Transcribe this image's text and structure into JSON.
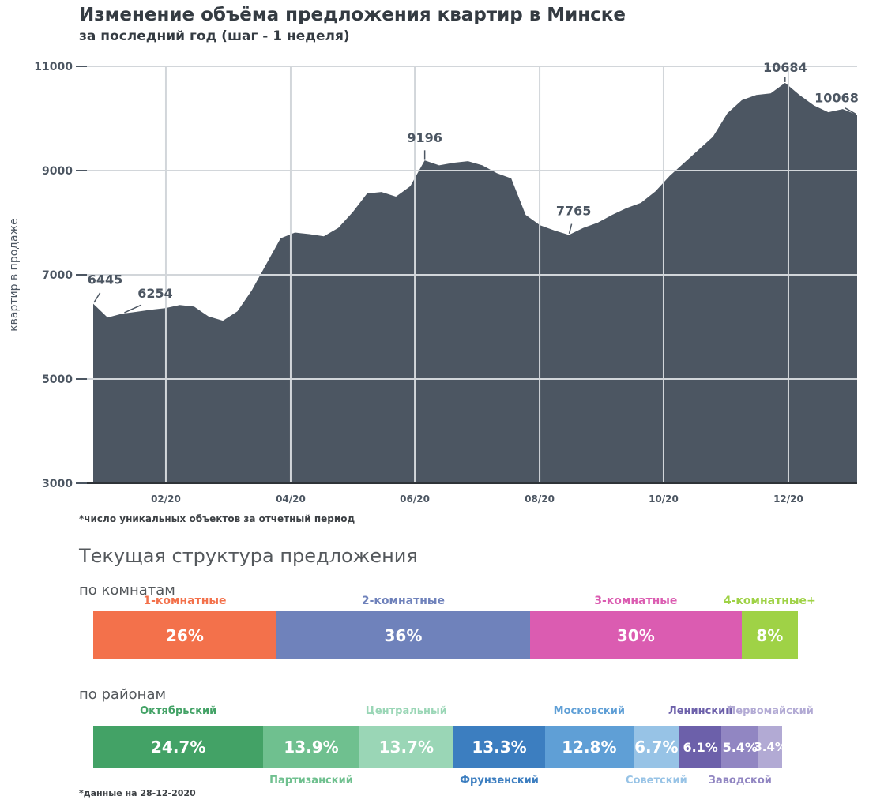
{
  "sections": {
    "structure_title": "Текущая структура предложения",
    "chart_footnote": "*число уникальных объектов за отчетный период",
    "data_footnote": "*данные на 28-12-2020"
  },
  "chart_data": [
    {
      "type": "area",
      "title": "Изменение объёма предложения квартир в Минске",
      "subtitle": "за последний год (шаг - 1 неделя)",
      "ylabel": "квартир в продаже",
      "ylim": [
        3000,
        11000
      ],
      "y_ticks": [
        3000,
        5000,
        7000,
        9000,
        11000
      ],
      "x_tick_labels": [
        "02/20",
        "04/20",
        "06/20",
        "08/20",
        "10/20",
        "12/20"
      ],
      "x_tick_index": [
        5.04,
        13.7,
        22.31,
        30.97,
        39.57,
        48.23
      ],
      "grid": true,
      "legend": "none",
      "values": [
        6445,
        6180,
        6254,
        6290,
        6330,
        6360,
        6420,
        6390,
        6200,
        6120,
        6300,
        6700,
        7200,
        7700,
        7810,
        7780,
        7740,
        7900,
        8200,
        8560,
        8590,
        8500,
        8700,
        9196,
        9100,
        9150,
        9180,
        9100,
        8950,
        8850,
        8150,
        7950,
        7850,
        7765,
        7900,
        8000,
        8150,
        8280,
        8380,
        8600,
        8900,
        9150,
        9400,
        9650,
        10100,
        10350,
        10450,
        10480,
        10684,
        10450,
        10250,
        10120,
        10180,
        10068
      ],
      "annotations": [
        {
          "label": "6445",
          "index": 0
        },
        {
          "label": "6254",
          "index": 2
        },
        {
          "label": "9196",
          "index": 23
        },
        {
          "label": "7765",
          "index": 33
        },
        {
          "label": "10684",
          "index": 48
        },
        {
          "label": "10068",
          "index": 53
        }
      ],
      "fill_color": "#4c5662",
      "grid_color": "#d2d6da",
      "axis_color": "#2e3338",
      "text_color": "#4c5662"
    },
    {
      "type": "stacked-bar",
      "title": "по комнатам",
      "segments": [
        {
          "label": "1-комнатные",
          "value": 26,
          "color": "#f3714b",
          "label_pos": "top"
        },
        {
          "label": "2-комнатные",
          "value": 36,
          "color": "#6f82bb",
          "label_pos": "top"
        },
        {
          "label": "3-комнатные",
          "value": 30,
          "color": "#db5cb1",
          "label_pos": "top"
        },
        {
          "label": "4-комнатные+",
          "value": 8,
          "color": "#9fd246",
          "label_pos": "top"
        }
      ]
    },
    {
      "type": "stacked-bar",
      "title": "по районам",
      "segments": [
        {
          "label": "Октябрьский",
          "value": 24.7,
          "color": "#43a266",
          "label_pos": "top"
        },
        {
          "label": "Партизанский",
          "value": 13.9,
          "color": "#6fc08f",
          "label_pos": "bottom"
        },
        {
          "label": "Центральный",
          "value": 13.7,
          "color": "#9ad6b6",
          "label_pos": "top"
        },
        {
          "label": "Фрунзенский",
          "value": 13.3,
          "color": "#3c7ec0",
          "label_pos": "bottom"
        },
        {
          "label": "Московский",
          "value": 12.8,
          "color": "#5f9fd6",
          "label_pos": "top"
        },
        {
          "label": "Советский",
          "value": 6.7,
          "color": "#97c3e6",
          "label_pos": "bottom"
        },
        {
          "label": "Ленинский",
          "value": 6.1,
          "color": "#6c60aa",
          "label_pos": "top"
        },
        {
          "label": "Заводской",
          "value": 5.4,
          "color": "#9186c2",
          "label_pos": "bottom"
        },
        {
          "label": "Первомайский",
          "value": 3.4,
          "color": "#b2aad4",
          "label_pos": "top"
        }
      ]
    }
  ]
}
